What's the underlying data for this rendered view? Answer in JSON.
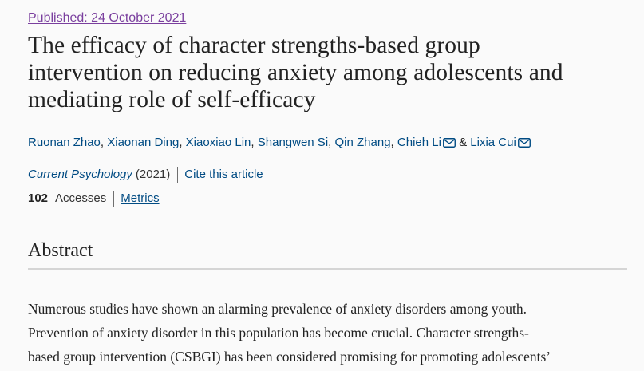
{
  "article": {
    "published": "Published: 24 October 2021",
    "title_lines": [
      "The efficacy of character strengths-based group",
      "intervention on reducing anxiety among adolescents and",
      "mediating role of self-efficacy"
    ],
    "authors": [
      {
        "name": "Ruonan Zhao",
        "after": ", "
      },
      {
        "name": "Xiaonan Ding",
        "after": ", "
      },
      {
        "name": "Xiaoxiao Lin",
        "after": ", "
      },
      {
        "name": "Shangwen Si",
        "after": ", "
      },
      {
        "name": "Qin Zhang",
        "after": ", "
      },
      {
        "name": "Chieh Li",
        "after": " & ",
        "has_mail_icon": true
      },
      {
        "name": "Lixia Cui",
        "after": "",
        "has_mail_icon": true
      }
    ],
    "mail_icon": "envelope-icon",
    "journal": "Current Psychology",
    "year": "(2021)",
    "cite_label": "Cite this article",
    "accesses_count": "102",
    "accesses_label": "Accesses",
    "metrics_label": "Metrics"
  },
  "abstract": {
    "heading": "Abstract",
    "lines": [
      "Numerous studies have shown an alarming prevalence of anxiety disorders among youth.",
      "Prevention of anxiety disorder in this population has become crucial. Character strengths-",
      "based group intervention (CSBGI) has been considered promising for promoting adolescents’"
    ]
  },
  "colors": {
    "background": "#fafafa",
    "link": "#004b83",
    "published_link": "#7a3f9e",
    "text": "#222222",
    "rule": "#d5d5d5"
  }
}
